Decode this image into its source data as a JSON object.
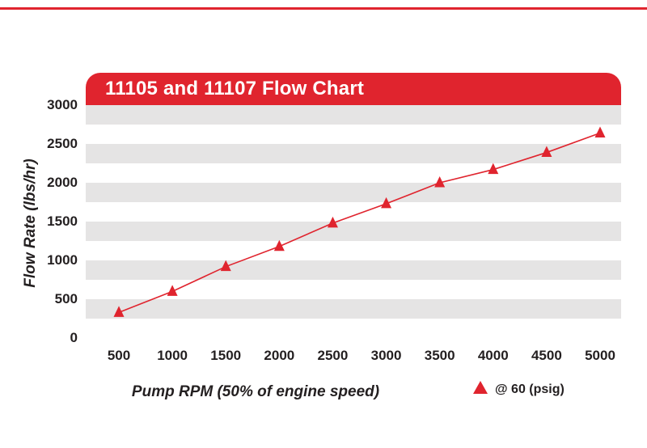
{
  "chart_data": {
    "type": "line",
    "title": "11105 and 11107 Flow Chart",
    "xlabel": "Pump RPM (50% of engine speed)",
    "ylabel": "Flow Rate (lbs/hr)",
    "x": [
      500,
      1000,
      1500,
      2000,
      2500,
      3000,
      3500,
      4000,
      4500,
      5000
    ],
    "series": [
      {
        "name": "@ 60 (psig)",
        "marker": "triangle-up",
        "values": [
          330,
          600,
          920,
          1180,
          1480,
          1730,
          2000,
          2170,
          2390,
          2640
        ]
      }
    ],
    "xlim": [
      500,
      5000
    ],
    "ylim": [
      0,
      3000
    ],
    "xticks": [
      500,
      1000,
      1500,
      2000,
      2500,
      3000,
      3500,
      4000,
      4500,
      5000
    ],
    "yticks": [
      0,
      500,
      1000,
      1500,
      2000,
      2500,
      3000
    ],
    "grid": "striped-horizontal-bands",
    "band_step": 250,
    "legend_position": "bottom-right",
    "legend_label": "@ 60 (psig)",
    "colors": {
      "accent": "#e0242e",
      "stripe": "#e5e4e4",
      "band_alt": "#ffffff",
      "text": "#231f20"
    }
  }
}
